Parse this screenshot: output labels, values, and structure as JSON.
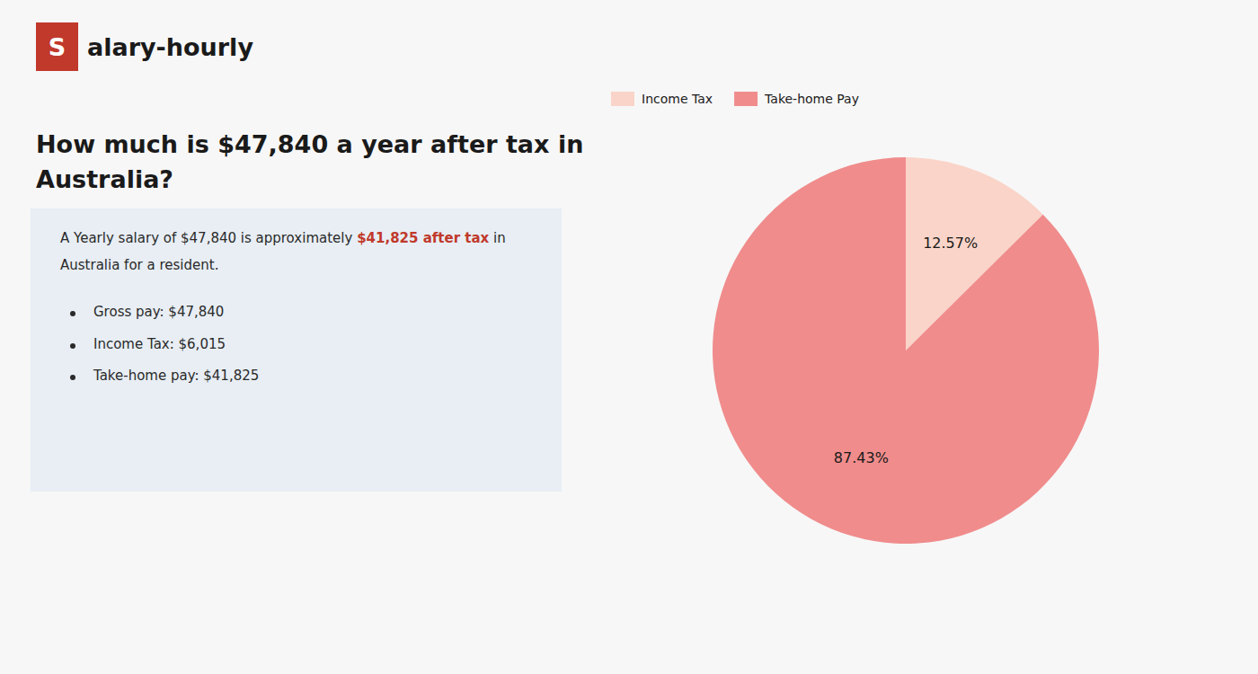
{
  "chart_data": {
    "type": "pie",
    "title": "How much is $47,840 a year after tax in\nAustralia?",
    "annotations": [
      "S",
      "alary-hourly",
      "A Yearly salary of $47,840 is approximately ",
      "$41,825 after tax",
      " in",
      "Australia for a resident.",
      "Gross pay: $47,840",
      "Income Tax: $6,015",
      "Take-home pay: $41,825"
    ],
    "categories": [
      "Income Tax",
      "Take-home Pay"
    ],
    "values": [
      12.57,
      87.43
    ],
    "value_labels": [
      "12.57%",
      "87.43%"
    ],
    "colors": [
      "#fad4c8",
      "#f08c8c"
    ],
    "data_labels": true,
    "legend": "upper left"
  }
}
